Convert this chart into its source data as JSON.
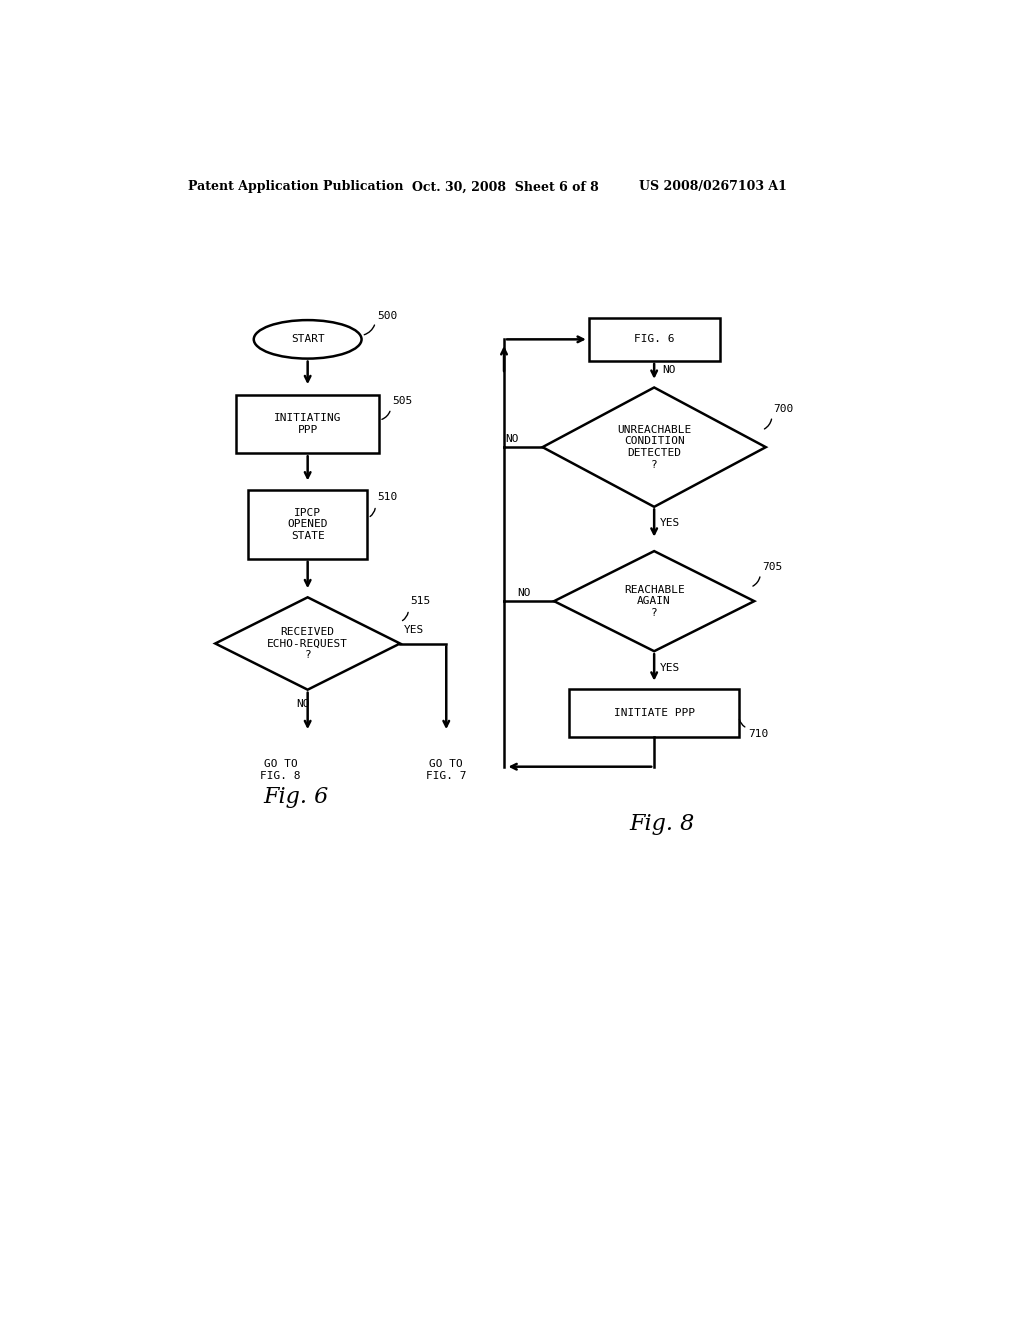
{
  "bg_color": "#ffffff",
  "header_left": "Patent Application Publication",
  "header_mid": "Oct. 30, 2008  Sheet 6 of 8",
  "header_right": "US 2008/0267103 A1",
  "fig6_caption": "Fig. 6",
  "fig8_caption": "Fig. 8",
  "lw": 1.8,
  "fontsize_mono": 8,
  "fontsize_caption": 16,
  "fontsize_header": 9
}
